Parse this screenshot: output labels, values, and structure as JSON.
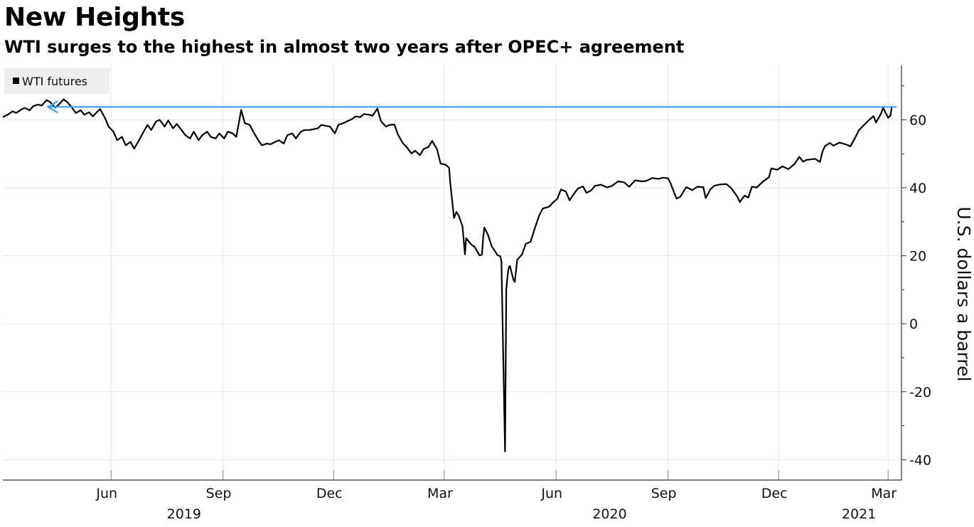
{
  "chart_data": {
    "type": "line",
    "title": "New Heights",
    "subtitle": "WTI surges to the highest in almost two years after OPEC+ agreement",
    "ylabel": "U.S. dollars a barrel",
    "y_axis_side": "right",
    "ylim": [
      -46,
      76
    ],
    "y_ticks": [
      60,
      40,
      20,
      0,
      -20,
      -40
    ],
    "y_tick_labels": [
      "60",
      "40",
      "20",
      "0",
      "-20",
      "-40"
    ],
    "xlim": [
      "2019-03-04",
      "2021-03-12"
    ],
    "grid": true,
    "legend_position": "top-left",
    "x_ticks": [
      {
        "date": "2019-06-01",
        "label": "Jun"
      },
      {
        "date": "2019-09-01",
        "label": "Sep"
      },
      {
        "date": "2019-12-01",
        "label": "Dec"
      },
      {
        "date": "2020-03-01",
        "label": "Mar"
      },
      {
        "date": "2020-06-01",
        "label": "Jun"
      },
      {
        "date": "2020-09-01",
        "label": "Sep"
      },
      {
        "date": "2020-12-01",
        "label": "Dec"
      },
      {
        "date": "2021-03-01",
        "label": "Mar"
      }
    ],
    "year_labels": [
      {
        "date": "2019-07-31",
        "label": "2019"
      },
      {
        "date": "2020-07-15",
        "label": "2020"
      },
      {
        "date": "2021-02-05",
        "label": "2021"
      }
    ],
    "reference_line": {
      "value": 63.8,
      "from": "2019-04-10",
      "to": "2021-03-08",
      "color": "#3aa0ff",
      "arrow": "left"
    },
    "series": [
      {
        "name": "WTI futures",
        "color": "#000000",
        "points": [
          [
            "2019-03-04",
            60.8
          ],
          [
            "2019-03-08",
            61.5
          ],
          [
            "2019-03-12",
            62.5
          ],
          [
            "2019-03-15",
            62.0
          ],
          [
            "2019-03-19",
            63.0
          ],
          [
            "2019-03-22",
            63.5
          ],
          [
            "2019-03-26",
            62.8
          ],
          [
            "2019-03-29",
            64.0
          ],
          [
            "2019-04-02",
            64.5
          ],
          [
            "2019-04-05",
            64.2
          ],
          [
            "2019-04-09",
            65.8
          ],
          [
            "2019-04-12",
            65.2
          ],
          [
            "2019-04-16",
            63.6
          ],
          [
            "2019-04-19",
            64.5
          ],
          [
            "2019-04-23",
            66.0
          ],
          [
            "2019-04-26",
            65.2
          ],
          [
            "2019-04-30",
            63.5
          ],
          [
            "2019-05-03",
            62.0
          ],
          [
            "2019-05-07",
            62.8
          ],
          [
            "2019-05-10",
            61.5
          ],
          [
            "2019-05-14",
            62.2
          ],
          [
            "2019-05-17",
            61.0
          ],
          [
            "2019-05-21",
            62.5
          ],
          [
            "2019-05-23",
            63.2
          ],
          [
            "2019-05-27",
            60.5
          ],
          [
            "2019-05-30",
            58.0
          ],
          [
            "2019-06-03",
            56.5
          ],
          [
            "2019-06-06",
            54.0
          ],
          [
            "2019-06-10",
            55.0
          ],
          [
            "2019-06-13",
            52.5
          ],
          [
            "2019-06-17",
            53.5
          ],
          [
            "2019-06-20",
            51.5
          ],
          [
            "2019-06-24",
            54.0
          ],
          [
            "2019-06-27",
            56.0
          ],
          [
            "2019-07-01",
            58.5
          ],
          [
            "2019-07-04",
            57.0
          ],
          [
            "2019-07-08",
            59.5
          ],
          [
            "2019-07-11",
            60.0
          ],
          [
            "2019-07-15",
            58.0
          ],
          [
            "2019-07-18",
            59.8
          ],
          [
            "2019-07-22",
            57.5
          ],
          [
            "2019-07-25",
            58.8
          ],
          [
            "2019-07-29",
            57.0
          ],
          [
            "2019-08-01",
            55.5
          ],
          [
            "2019-08-05",
            54.5
          ],
          [
            "2019-08-08",
            56.5
          ],
          [
            "2019-08-12",
            54.0
          ],
          [
            "2019-08-15",
            55.5
          ],
          [
            "2019-08-19",
            56.5
          ],
          [
            "2019-08-22",
            55.0
          ],
          [
            "2019-08-26",
            54.5
          ],
          [
            "2019-08-29",
            56.0
          ],
          [
            "2019-09-02",
            54.5
          ],
          [
            "2019-09-05",
            56.5
          ],
          [
            "2019-09-09",
            56.0
          ],
          [
            "2019-09-12",
            55.0
          ],
          [
            "2019-09-16",
            62.9
          ],
          [
            "2019-09-19",
            59.0
          ],
          [
            "2019-09-23",
            58.5
          ],
          [
            "2019-09-26",
            56.5
          ],
          [
            "2019-09-30",
            54.0
          ],
          [
            "2019-10-03",
            52.5
          ],
          [
            "2019-10-07",
            53.0
          ],
          [
            "2019-10-10",
            52.8
          ],
          [
            "2019-10-14",
            53.5
          ],
          [
            "2019-10-17",
            54.0
          ],
          [
            "2019-10-21",
            53.0
          ],
          [
            "2019-10-24",
            55.5
          ],
          [
            "2019-10-28",
            56.0
          ],
          [
            "2019-10-31",
            54.5
          ],
          [
            "2019-11-04",
            56.5
          ],
          [
            "2019-11-07",
            57.0
          ],
          [
            "2019-11-11",
            57.0
          ],
          [
            "2019-11-14",
            57.2
          ],
          [
            "2019-11-18",
            57.5
          ],
          [
            "2019-11-21",
            58.5
          ],
          [
            "2019-11-25",
            58.2
          ],
          [
            "2019-11-28",
            58.0
          ],
          [
            "2019-12-02",
            56.0
          ],
          [
            "2019-12-05",
            58.5
          ],
          [
            "2019-12-09",
            59.0
          ],
          [
            "2019-12-12",
            59.5
          ],
          [
            "2019-12-16",
            60.2
          ],
          [
            "2019-12-19",
            61.0
          ],
          [
            "2019-12-23",
            60.8
          ],
          [
            "2019-12-26",
            61.7
          ],
          [
            "2019-12-30",
            61.5
          ],
          [
            "2020-01-02",
            61.2
          ],
          [
            "2020-01-06",
            63.3
          ],
          [
            "2020-01-09",
            59.6
          ],
          [
            "2020-01-13",
            58.0
          ],
          [
            "2020-01-16",
            58.5
          ],
          [
            "2020-01-20",
            58.6
          ],
          [
            "2020-01-23",
            55.6
          ],
          [
            "2020-01-27",
            53.1
          ],
          [
            "2020-01-30",
            52.0
          ],
          [
            "2020-02-03",
            50.1
          ],
          [
            "2020-02-06",
            50.9
          ],
          [
            "2020-02-10",
            49.6
          ],
          [
            "2020-02-13",
            51.4
          ],
          [
            "2020-02-17",
            52.0
          ],
          [
            "2020-02-20",
            53.8
          ],
          [
            "2020-02-24",
            51.4
          ],
          [
            "2020-02-27",
            47.1
          ],
          [
            "2020-03-02",
            46.8
          ],
          [
            "2020-03-05",
            45.9
          ],
          [
            "2020-03-06",
            41.3
          ],
          [
            "2020-03-09",
            31.1
          ],
          [
            "2020-03-11",
            32.9
          ],
          [
            "2020-03-13",
            31.7
          ],
          [
            "2020-03-16",
            28.7
          ],
          [
            "2020-03-18",
            20.4
          ],
          [
            "2020-03-19",
            25.2
          ],
          [
            "2020-03-23",
            23.4
          ],
          [
            "2020-03-26",
            22.6
          ],
          [
            "2020-03-30",
            20.1
          ],
          [
            "2020-04-01",
            20.3
          ],
          [
            "2020-04-02",
            25.3
          ],
          [
            "2020-04-03",
            28.3
          ],
          [
            "2020-04-06",
            26.1
          ],
          [
            "2020-04-09",
            22.8
          ],
          [
            "2020-04-14",
            20.1
          ],
          [
            "2020-04-16",
            19.9
          ],
          [
            "2020-04-17",
            18.3
          ],
          [
            "2020-04-20",
            -37.6
          ],
          [
            "2020-04-21",
            10.0
          ],
          [
            "2020-04-22",
            13.8
          ],
          [
            "2020-04-23",
            16.5
          ],
          [
            "2020-04-24",
            17.0
          ],
          [
            "2020-04-27",
            12.8
          ],
          [
            "2020-04-28",
            12.3
          ],
          [
            "2020-04-30",
            18.8
          ],
          [
            "2020-05-04",
            20.4
          ],
          [
            "2020-05-07",
            23.5
          ],
          [
            "2020-05-11",
            24.1
          ],
          [
            "2020-05-14",
            27.6
          ],
          [
            "2020-05-18",
            31.8
          ],
          [
            "2020-05-21",
            33.9
          ],
          [
            "2020-05-26",
            34.4
          ],
          [
            "2020-05-29",
            35.5
          ],
          [
            "2020-06-02",
            36.8
          ],
          [
            "2020-06-05",
            39.5
          ],
          [
            "2020-06-09",
            38.9
          ],
          [
            "2020-06-12",
            36.3
          ],
          [
            "2020-06-16",
            38.4
          ],
          [
            "2020-06-19",
            39.8
          ],
          [
            "2020-06-23",
            40.4
          ],
          [
            "2020-06-26",
            38.5
          ],
          [
            "2020-06-30",
            39.3
          ],
          [
            "2020-07-03",
            40.6
          ],
          [
            "2020-07-08",
            40.9
          ],
          [
            "2020-07-13",
            40.1
          ],
          [
            "2020-07-17",
            40.6
          ],
          [
            "2020-07-22",
            41.9
          ],
          [
            "2020-07-27",
            41.6
          ],
          [
            "2020-07-31",
            40.3
          ],
          [
            "2020-08-05",
            42.2
          ],
          [
            "2020-08-10",
            41.9
          ],
          [
            "2020-08-14",
            42.0
          ],
          [
            "2020-08-19",
            42.9
          ],
          [
            "2020-08-24",
            42.6
          ],
          [
            "2020-08-28",
            42.97
          ],
          [
            "2020-09-01",
            42.8
          ],
          [
            "2020-09-03",
            41.4
          ],
          [
            "2020-09-08",
            36.8
          ],
          [
            "2020-09-11",
            37.3
          ],
          [
            "2020-09-16",
            40.2
          ],
          [
            "2020-09-21",
            39.3
          ],
          [
            "2020-09-25",
            40.3
          ],
          [
            "2020-09-30",
            40.2
          ],
          [
            "2020-10-02",
            37.0
          ],
          [
            "2020-10-06",
            39.6
          ],
          [
            "2020-10-09",
            40.6
          ],
          [
            "2020-10-14",
            41.0
          ],
          [
            "2020-10-19",
            41.1
          ],
          [
            "2020-10-23",
            39.9
          ],
          [
            "2020-10-28",
            37.4
          ],
          [
            "2020-10-30",
            35.8
          ],
          [
            "2020-11-03",
            37.7
          ],
          [
            "2020-11-06",
            37.1
          ],
          [
            "2020-11-09",
            40.3
          ],
          [
            "2020-11-13",
            40.1
          ],
          [
            "2020-11-18",
            41.8
          ],
          [
            "2020-11-23",
            43.1
          ],
          [
            "2020-11-25",
            45.7
          ],
          [
            "2020-11-30",
            45.3
          ],
          [
            "2020-12-04",
            46.3
          ],
          [
            "2020-12-09",
            45.5
          ],
          [
            "2020-12-14",
            46.99
          ],
          [
            "2020-12-18",
            49.1
          ],
          [
            "2020-12-21",
            47.7
          ],
          [
            "2020-12-24",
            48.2
          ],
          [
            "2020-12-31",
            48.5
          ],
          [
            "2021-01-04",
            47.6
          ],
          [
            "2021-01-06",
            50.6
          ],
          [
            "2021-01-08",
            52.2
          ],
          [
            "2021-01-12",
            53.2
          ],
          [
            "2021-01-15",
            52.4
          ],
          [
            "2021-01-20",
            53.3
          ],
          [
            "2021-01-25",
            52.8
          ],
          [
            "2021-01-29",
            52.2
          ],
          [
            "2021-02-02",
            54.8
          ],
          [
            "2021-02-05",
            56.9
          ],
          [
            "2021-02-09",
            58.4
          ],
          [
            "2021-02-12",
            59.5
          ],
          [
            "2021-02-17",
            61.1
          ],
          [
            "2021-02-19",
            59.2
          ],
          [
            "2021-02-23",
            61.7
          ],
          [
            "2021-02-25",
            63.5
          ],
          [
            "2021-03-01",
            60.6
          ],
          [
            "2021-03-03",
            61.3
          ],
          [
            "2021-03-04",
            63.8
          ]
        ]
      }
    ]
  }
}
